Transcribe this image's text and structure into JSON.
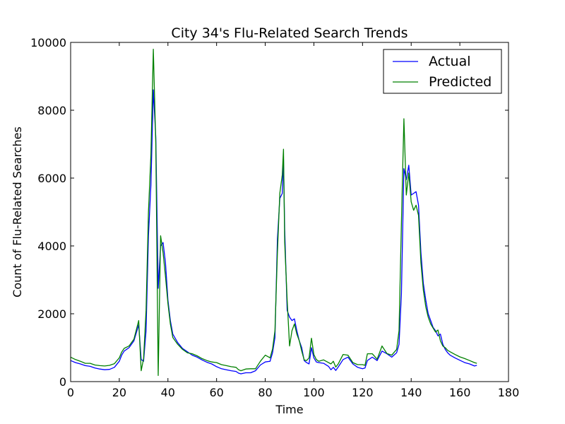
{
  "chart_data": {
    "type": "line",
    "title": "City 34's Flu-Related Search Trends",
    "xlabel": "Time",
    "ylabel": "Count of Flu-Related Searches",
    "xlim": [
      0,
      180
    ],
    "ylim": [
      0,
      10000
    ],
    "xticks": [
      0,
      20,
      40,
      60,
      80,
      100,
      120,
      140,
      160,
      180
    ],
    "yticks": [
      0,
      2000,
      4000,
      6000,
      8000,
      10000
    ],
    "legend_position": "top-right",
    "series": [
      {
        "name": "Actual",
        "color": "#0000ff",
        "points": [
          [
            0,
            620
          ],
          [
            2,
            560
          ],
          [
            4,
            520
          ],
          [
            6,
            470
          ],
          [
            8,
            450
          ],
          [
            10,
            400
          ],
          [
            12,
            370
          ],
          [
            14,
            350
          ],
          [
            16,
            360
          ],
          [
            18,
            420
          ],
          [
            20,
            600
          ],
          [
            21,
            780
          ],
          [
            22,
            900
          ],
          [
            24,
            1000
          ],
          [
            26,
            1200
          ],
          [
            28,
            1680
          ],
          [
            29,
            650
          ],
          [
            30,
            600
          ],
          [
            31,
            1500
          ],
          [
            32,
            4300
          ],
          [
            33,
            5800
          ],
          [
            34,
            8600
          ],
          [
            35,
            7200
          ],
          [
            36,
            2750
          ],
          [
            37,
            4000
          ],
          [
            38,
            4100
          ],
          [
            39,
            3500
          ],
          [
            40,
            2400
          ],
          [
            41,
            1800
          ],
          [
            42,
            1400
          ],
          [
            44,
            1150
          ],
          [
            46,
            980
          ],
          [
            48,
            880
          ],
          [
            50,
            780
          ],
          [
            52,
            720
          ],
          [
            54,
            640
          ],
          [
            56,
            570
          ],
          [
            58,
            520
          ],
          [
            60,
            440
          ],
          [
            62,
            380
          ],
          [
            64,
            350
          ],
          [
            66,
            320
          ],
          [
            68,
            300
          ],
          [
            69,
            250
          ],
          [
            70,
            230
          ],
          [
            72,
            260
          ],
          [
            74,
            260
          ],
          [
            76,
            320
          ],
          [
            78,
            490
          ],
          [
            80,
            580
          ],
          [
            82,
            600
          ],
          [
            83,
            850
          ],
          [
            84,
            1300
          ],
          [
            85,
            4200
          ],
          [
            86,
            5400
          ],
          [
            87,
            5550
          ],
          [
            87.5,
            6550
          ],
          [
            88,
            4500
          ],
          [
            89,
            2100
          ],
          [
            90,
            1900
          ],
          [
            91,
            1800
          ],
          [
            92,
            1850
          ],
          [
            93,
            1500
          ],
          [
            94,
            1200
          ],
          [
            95,
            1000
          ],
          [
            96,
            620
          ],
          [
            97,
            560
          ],
          [
            98,
            520
          ],
          [
            99,
            1000
          ],
          [
            100,
            700
          ],
          [
            101,
            580
          ],
          [
            102,
            560
          ],
          [
            104,
            540
          ],
          [
            106,
            450
          ],
          [
            107,
            350
          ],
          [
            108,
            420
          ],
          [
            109,
            330
          ],
          [
            110,
            430
          ],
          [
            112,
            650
          ],
          [
            114,
            720
          ],
          [
            116,
            520
          ],
          [
            118,
            420
          ],
          [
            120,
            380
          ],
          [
            121,
            400
          ],
          [
            122,
            620
          ],
          [
            124,
            720
          ],
          [
            126,
            620
          ],
          [
            128,
            900
          ],
          [
            130,
            820
          ],
          [
            132,
            720
          ],
          [
            134,
            850
          ],
          [
            135,
            1100
          ],
          [
            136,
            2600
          ],
          [
            137,
            6280
          ],
          [
            138,
            5950
          ],
          [
            139,
            6380
          ],
          [
            140,
            5500
          ],
          [
            141,
            5550
          ],
          [
            142,
            5600
          ],
          [
            143,
            5200
          ],
          [
            144,
            3800
          ],
          [
            145,
            2900
          ],
          [
            146,
            2400
          ],
          [
            147,
            2000
          ],
          [
            148,
            1800
          ],
          [
            149,
            1600
          ],
          [
            150,
            1500
          ],
          [
            151,
            1350
          ],
          [
            152,
            1400
          ],
          [
            153,
            1100
          ],
          [
            154,
            950
          ],
          [
            155,
            850
          ],
          [
            156,
            780
          ],
          [
            158,
            700
          ],
          [
            160,
            630
          ],
          [
            162,
            560
          ],
          [
            164,
            520
          ],
          [
            166,
            460
          ],
          [
            167,
            480
          ]
        ]
      },
      {
        "name": "Predicted",
        "color": "#008000",
        "points": [
          [
            0,
            720
          ],
          [
            2,
            650
          ],
          [
            4,
            600
          ],
          [
            6,
            540
          ],
          [
            8,
            540
          ],
          [
            10,
            490
          ],
          [
            12,
            470
          ],
          [
            14,
            460
          ],
          [
            16,
            480
          ],
          [
            18,
            530
          ],
          [
            20,
            700
          ],
          [
            21,
            870
          ],
          [
            22,
            980
          ],
          [
            24,
            1050
          ],
          [
            26,
            1250
          ],
          [
            28,
            1800
          ],
          [
            29,
            320
          ],
          [
            30,
            680
          ],
          [
            31,
            2100
          ],
          [
            32,
            5000
          ],
          [
            33,
            6700
          ],
          [
            34,
            9800
          ],
          [
            35,
            7000
          ],
          [
            36,
            180
          ],
          [
            37,
            4300
          ],
          [
            38,
            3800
          ],
          [
            39,
            3100
          ],
          [
            40,
            2300
          ],
          [
            41,
            1700
          ],
          [
            42,
            1300
          ],
          [
            44,
            1100
          ],
          [
            46,
            950
          ],
          [
            48,
            850
          ],
          [
            50,
            820
          ],
          [
            52,
            760
          ],
          [
            54,
            680
          ],
          [
            56,
            620
          ],
          [
            58,
            580
          ],
          [
            60,
            560
          ],
          [
            62,
            500
          ],
          [
            64,
            470
          ],
          [
            66,
            440
          ],
          [
            68,
            420
          ],
          [
            69,
            350
          ],
          [
            70,
            320
          ],
          [
            72,
            370
          ],
          [
            74,
            380
          ],
          [
            76,
            380
          ],
          [
            78,
            600
          ],
          [
            80,
            780
          ],
          [
            82,
            700
          ],
          [
            83,
            960
          ],
          [
            84,
            1500
          ],
          [
            85,
            3800
          ],
          [
            86,
            5550
          ],
          [
            87,
            6100
          ],
          [
            87.5,
            6850
          ],
          [
            88,
            4100
          ],
          [
            89,
            2400
          ],
          [
            90,
            1050
          ],
          [
            91,
            1500
          ],
          [
            92,
            1700
          ],
          [
            93,
            1400
          ],
          [
            94,
            1200
          ],
          [
            95,
            900
          ],
          [
            96,
            640
          ],
          [
            97,
            620
          ],
          [
            98,
            700
          ],
          [
            99,
            1280
          ],
          [
            100,
            800
          ],
          [
            101,
            650
          ],
          [
            102,
            600
          ],
          [
            104,
            640
          ],
          [
            106,
            560
          ],
          [
            107,
            520
          ],
          [
            108,
            600
          ],
          [
            109,
            430
          ],
          [
            110,
            520
          ],
          [
            112,
            800
          ],
          [
            114,
            780
          ],
          [
            116,
            560
          ],
          [
            118,
            500
          ],
          [
            120,
            500
          ],
          [
            121,
            480
          ],
          [
            122,
            820
          ],
          [
            124,
            820
          ],
          [
            126,
            660
          ],
          [
            128,
            1050
          ],
          [
            130,
            830
          ],
          [
            132,
            780
          ],
          [
            134,
            950
          ],
          [
            135,
            1500
          ],
          [
            136,
            4700
          ],
          [
            137,
            7750
          ],
          [
            138,
            5500
          ],
          [
            139,
            6150
          ],
          [
            140,
            5300
          ],
          [
            141,
            5050
          ],
          [
            142,
            5200
          ],
          [
            143,
            4900
          ],
          [
            144,
            3500
          ],
          [
            145,
            2700
          ],
          [
            146,
            2200
          ],
          [
            147,
            1900
          ],
          [
            148,
            1700
          ],
          [
            149,
            1580
          ],
          [
            150,
            1460
          ],
          [
            151,
            1520
          ],
          [
            152,
            1200
          ],
          [
            153,
            1050
          ],
          [
            154,
            1000
          ],
          [
            155,
            920
          ],
          [
            156,
            880
          ],
          [
            158,
            800
          ],
          [
            160,
            730
          ],
          [
            162,
            680
          ],
          [
            164,
            620
          ],
          [
            166,
            560
          ],
          [
            167,
            540
          ]
        ]
      }
    ]
  }
}
